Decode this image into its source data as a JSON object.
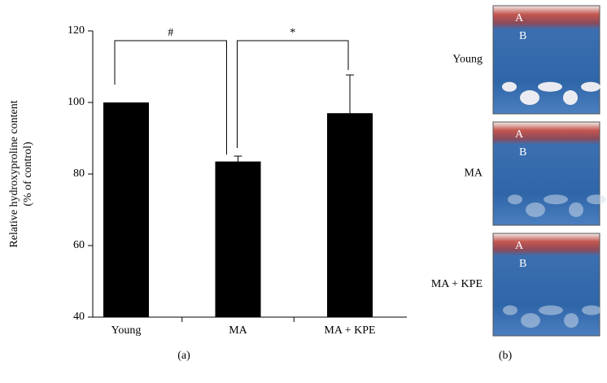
{
  "chart_data": {
    "type": "bar",
    "ylabel": [
      "Relative hydroxyproline content",
      "(% of control)"
    ],
    "categories": [
      "Young",
      "MA",
      "MA + KPE"
    ],
    "values": [
      100,
      83.5,
      97
    ],
    "errors": [
      null,
      1.5,
      10.7
    ],
    "color": "#000000",
    "ylim": [
      40,
      120
    ],
    "yticks": [
      40,
      60,
      80,
      100,
      120
    ],
    "annotations": [
      {
        "text": "#",
        "from": 0,
        "to": 1
      },
      {
        "text": "*",
        "from": 1,
        "to": 2
      }
    ],
    "caption": "(a)"
  },
  "panel_b": {
    "caption": "(b)",
    "panels": [
      {
        "label": "Young",
        "markers": [
          "A",
          "B"
        ]
      },
      {
        "label": "MA",
        "markers": [
          "A",
          "B"
        ]
      },
      {
        "label": "MA + KPE",
        "markers": [
          "A",
          "B"
        ]
      }
    ]
  }
}
